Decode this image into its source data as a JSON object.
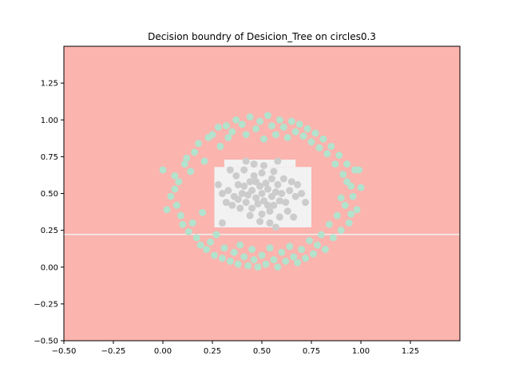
{
  "chart_data": {
    "type": "scatter",
    "title": "Decision boundry of Desicion_Tree on circles0.3",
    "xlabel": "",
    "ylabel": "",
    "xlim": [
      -0.5,
      1.5
    ],
    "ylim": [
      -0.5,
      1.5
    ],
    "xticks": [
      -0.5,
      -0.25,
      0.0,
      0.25,
      0.5,
      0.75,
      1.0,
      1.25
    ],
    "xtick_labels": [
      "−0.50",
      "−0.25",
      "0.00",
      "0.25",
      "0.50",
      "0.75",
      "1.00",
      "1.25"
    ],
    "yticks": [
      -0.5,
      -0.25,
      0.0,
      0.25,
      0.5,
      0.75,
      1.0,
      1.25
    ],
    "ytick_labels": [
      "−0.50",
      "−0.25",
      "0.00",
      "0.25",
      "0.50",
      "0.75",
      "1.00",
      "1.25"
    ],
    "grid": false,
    "legend": "none",
    "colors": {
      "outer_region": "#fbb4ae",
      "inner_region": "#f2f2f2",
      "outer_points": "#b3e2cd",
      "inner_points": "#cccccc"
    },
    "decision_regions": [
      {
        "class": "outer",
        "x": [
          -0.5,
          1.5
        ],
        "y": [
          -0.5,
          1.5
        ]
      },
      {
        "class": "inner",
        "x": [
          0.26,
          0.75
        ],
        "y": [
          0.27,
          0.68
        ]
      },
      {
        "class": "inner",
        "x": [
          0.31,
          0.67
        ],
        "y": [
          0.68,
          0.73
        ]
      },
      {
        "class": "boundary-line",
        "x": [
          -0.5,
          1.5
        ],
        "y": [
          0.218,
          0.226
        ]
      }
    ],
    "series": [
      {
        "class": "outer",
        "description": "ring of points",
        "center": [
          0.5,
          0.5
        ],
        "radius": [
          0.31,
          0.47
        ],
        "points": [
          [
            0.0,
            0.66
          ],
          [
            0.02,
            0.39
          ],
          [
            0.04,
            0.48
          ],
          [
            0.06,
            0.53
          ],
          [
            0.07,
            0.42
          ],
          [
            0.06,
            0.62
          ],
          [
            0.08,
            0.58
          ],
          [
            0.09,
            0.35
          ],
          [
            0.1,
            0.29
          ],
          [
            0.11,
            0.7
          ],
          [
            0.12,
            0.74
          ],
          [
            0.13,
            0.24
          ],
          [
            0.14,
            0.65
          ],
          [
            0.15,
            0.3
          ],
          [
            0.16,
            0.78
          ],
          [
            0.17,
            0.2
          ],
          [
            0.18,
            0.84
          ],
          [
            0.19,
            0.15
          ],
          [
            0.2,
            0.37
          ],
          [
            0.21,
            0.72
          ],
          [
            0.22,
            0.12
          ],
          [
            0.23,
            0.88
          ],
          [
            0.24,
            0.17
          ],
          [
            0.25,
            0.9
          ],
          [
            0.26,
            0.08
          ],
          [
            0.27,
            0.22
          ],
          [
            0.28,
            0.95
          ],
          [
            0.29,
            0.82
          ],
          [
            0.3,
            0.06
          ],
          [
            0.31,
            0.13
          ],
          [
            0.32,
            0.96
          ],
          [
            0.33,
            0.88
          ],
          [
            0.34,
            0.04
          ],
          [
            0.35,
            0.92
          ],
          [
            0.36,
            0.1
          ],
          [
            0.37,
            1.0
          ],
          [
            0.38,
            0.02
          ],
          [
            0.39,
            0.15
          ],
          [
            0.4,
            0.97
          ],
          [
            0.41,
            0.07
          ],
          [
            0.42,
            0.9
          ],
          [
            0.43,
            0.01
          ],
          [
            0.44,
            1.02
          ],
          [
            0.45,
            0.12
          ],
          [
            0.46,
            0.05
          ],
          [
            0.47,
            0.94
          ],
          [
            0.48,
            0.0
          ],
          [
            0.49,
            0.99
          ],
          [
            0.5,
            0.08
          ],
          [
            0.51,
            0.87
          ],
          [
            0.52,
            0.02
          ],
          [
            0.53,
            1.03
          ],
          [
            0.54,
            0.13
          ],
          [
            0.55,
            0.96
          ],
          [
            0.56,
            0.05
          ],
          [
            0.57,
            0.9
          ],
          [
            0.58,
            0.0
          ],
          [
            0.59,
            1.0
          ],
          [
            0.6,
            0.1
          ],
          [
            0.61,
            0.95
          ],
          [
            0.62,
            0.04
          ],
          [
            0.63,
            0.88
          ],
          [
            0.64,
            0.14
          ],
          [
            0.65,
            0.99
          ],
          [
            0.66,
            0.07
          ],
          [
            0.67,
            0.92
          ],
          [
            0.68,
            0.03
          ],
          [
            0.69,
            0.97
          ],
          [
            0.7,
            0.12
          ],
          [
            0.71,
            0.89
          ],
          [
            0.72,
            0.06
          ],
          [
            0.73,
            0.94
          ],
          [
            0.74,
            0.18
          ],
          [
            0.75,
            0.85
          ],
          [
            0.76,
            0.09
          ],
          [
            0.77,
            0.91
          ],
          [
            0.78,
            0.15
          ],
          [
            0.79,
            0.81
          ],
          [
            0.8,
            0.22
          ],
          [
            0.81,
            0.87
          ],
          [
            0.82,
            0.12
          ],
          [
            0.83,
            0.77
          ],
          [
            0.84,
            0.29
          ],
          [
            0.85,
            0.82
          ],
          [
            0.86,
            0.2
          ],
          [
            0.87,
            0.7
          ],
          [
            0.88,
            0.35
          ],
          [
            0.89,
            0.76
          ],
          [
            0.9,
            0.25
          ],
          [
            0.91,
            0.63
          ],
          [
            0.92,
            0.42
          ],
          [
            0.93,
            0.7
          ],
          [
            0.94,
            0.3
          ],
          [
            0.95,
            0.55
          ],
          [
            0.96,
            0.48
          ],
          [
            0.97,
            0.66
          ],
          [
            0.98,
            0.39
          ],
          [
            1.0,
            0.54
          ],
          [
            0.99,
            0.66
          ],
          [
            0.95,
            0.36
          ],
          [
            0.93,
            0.58
          ],
          [
            0.9,
            0.47
          ]
        ]
      },
      {
        "class": "inner",
        "description": "dense cluster at center",
        "center": [
          0.5,
          0.5
        ],
        "radius": [
          0.0,
          0.2
        ],
        "points": [
          [
            0.5,
            0.5
          ],
          [
            0.45,
            0.52
          ],
          [
            0.55,
            0.48
          ],
          [
            0.48,
            0.43
          ],
          [
            0.52,
            0.57
          ],
          [
            0.4,
            0.5
          ],
          [
            0.6,
            0.5
          ],
          [
            0.42,
            0.44
          ],
          [
            0.58,
            0.56
          ],
          [
            0.44,
            0.58
          ],
          [
            0.56,
            0.42
          ],
          [
            0.36,
            0.48
          ],
          [
            0.64,
            0.52
          ],
          [
            0.5,
            0.36
          ],
          [
            0.5,
            0.64
          ],
          [
            0.38,
            0.56
          ],
          [
            0.62,
            0.44
          ],
          [
            0.46,
            0.62
          ],
          [
            0.54,
            0.38
          ],
          [
            0.33,
            0.52
          ],
          [
            0.67,
            0.48
          ],
          [
            0.49,
            0.31
          ],
          [
            0.51,
            0.69
          ],
          [
            0.35,
            0.42
          ],
          [
            0.65,
            0.58
          ],
          [
            0.41,
            0.66
          ],
          [
            0.59,
            0.34
          ],
          [
            0.3,
            0.5
          ],
          [
            0.7,
            0.5
          ],
          [
            0.44,
            0.35
          ],
          [
            0.56,
            0.65
          ],
          [
            0.37,
            0.62
          ],
          [
            0.63,
            0.38
          ],
          [
            0.47,
            0.47
          ],
          [
            0.53,
            0.53
          ],
          [
            0.43,
            0.49
          ],
          [
            0.57,
            0.51
          ],
          [
            0.49,
            0.55
          ],
          [
            0.51,
            0.45
          ],
          [
            0.39,
            0.4
          ],
          [
            0.61,
            0.6
          ],
          [
            0.32,
            0.44
          ],
          [
            0.68,
            0.56
          ],
          [
            0.46,
            0.7
          ],
          [
            0.54,
            0.3
          ],
          [
            0.28,
            0.56
          ],
          [
            0.72,
            0.44
          ],
          [
            0.3,
            0.3
          ],
          [
            0.57,
            0.27
          ],
          [
            0.42,
            0.72
          ],
          [
            0.58,
            0.72
          ],
          [
            0.34,
            0.66
          ],
          [
            0.66,
            0.34
          ],
          [
            0.47,
            0.58
          ],
          [
            0.53,
            0.42
          ],
          [
            0.41,
            0.55
          ],
          [
            0.59,
            0.45
          ],
          [
            0.45,
            0.4
          ],
          [
            0.55,
            0.6
          ],
          [
            0.38,
            0.46
          ]
        ]
      }
    ]
  }
}
